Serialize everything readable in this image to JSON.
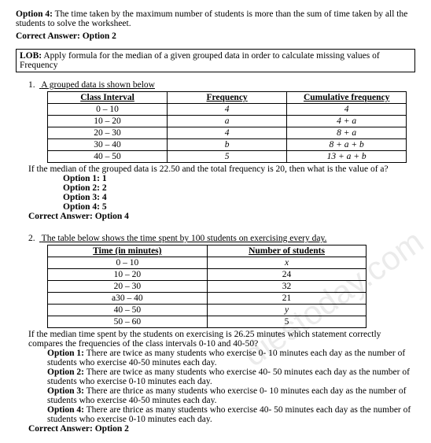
{
  "intro": {
    "option4_label": "Option 4:",
    "option4_text": " The time taken by the maximum number of students is more than the sum of time taken by all the students to solve the worksheet.",
    "correct_label": "Correct Answer:",
    "correct_value": " Option 2"
  },
  "lob": {
    "label": "LOB:",
    "text": " Apply formula for the median of a given grouped data in order to calculate missing values of Frequency"
  },
  "q1": {
    "num": "1.",
    "stem": "A grouped data is shown below",
    "headers": [
      "Class Interval",
      "Frequency",
      "Cumulative frequency"
    ],
    "rows": [
      [
        "0 – 10",
        "4",
        "4"
      ],
      [
        "10 – 20",
        "a",
        "4 + a"
      ],
      [
        "20 – 30",
        "4",
        "8 + a"
      ],
      [
        "30 – 40",
        "b",
        "8 + a + b"
      ],
      [
        "40 – 50",
        "5",
        "13 + a + b"
      ]
    ],
    "follow": "If the median of the grouped data is 22.50 and the total frequency is 20, then what is the value of a?",
    "opt1": "Option 1: 1",
    "opt2": "Option 2: 2",
    "opt3": "Option 3: 4",
    "opt4": "Option 4: 5",
    "correct_label": "Correct Answer:",
    "correct_value": " Option 4"
  },
  "q2": {
    "num": "2.",
    "stem": "The table below shows the time spent by 100 students on exercising every day.",
    "headers": [
      "Time (in minutes)",
      "Number of students"
    ],
    "rows": [
      [
        "0 – 10",
        "x"
      ],
      [
        "10 – 20",
        "24"
      ],
      [
        "20 – 30",
        "32"
      ],
      [
        "a30 – 40",
        "21"
      ],
      [
        "40 – 50",
        "y"
      ],
      [
        "50 – 60",
        "5"
      ]
    ],
    "follow": "If the median time spent by the students on exercising is 26.25 minutes which statement correctly compares the frequencies of the class intervals 0-10 and 40-50?",
    "opt1_l": "Option 1:",
    "opt1_t": " There are twice as many students who exercise 0- 10 minutes each day as the number of students who exercise 40-50 minutes each day.",
    "opt2_l": "Option 2:",
    "opt2_t": " There are twice as many students who exercise 40- 50 minutes each day as the number of students who exercise 0-10 minutes each day.",
    "opt3_l": "Option 3:",
    "opt3_t": " There are thrice as many students who exercise 0- 10 minutes each day as the number of students who exercise 40-50 minutes each day.",
    "opt4_l": "Option 4:",
    "opt4_t": " There are thrice as many students who exercise 40- 50 minutes each day as the number of students who exercise 0-10 minutes each day.",
    "correct_label": "Correct Answer:",
    "correct_value": " Option 2"
  },
  "watermark": "diestoday.com"
}
